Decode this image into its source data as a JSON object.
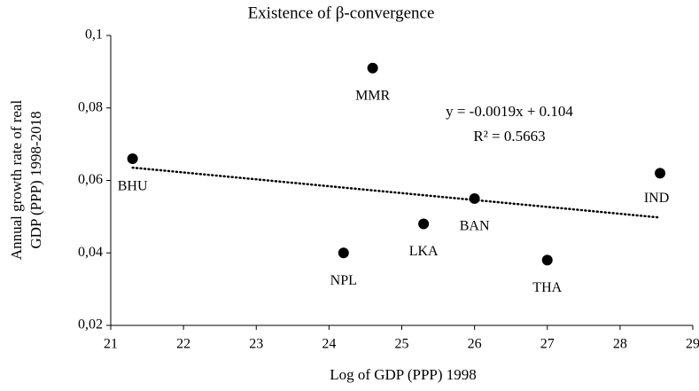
{
  "chart_data": {
    "type": "scatter",
    "title": "Existence of β-convergence",
    "xlabel": "Log of GDP (PPP) 1998",
    "ylabel": [
      "Annual growth rate of real",
      "GDP (PPP) 1998-2018"
    ],
    "labels": [
      "BHU",
      "MMR",
      "NPL",
      "LKA",
      "BAN",
      "THA",
      "IND"
    ],
    "x": [
      21.3,
      24.6,
      24.2,
      25.3,
      26.0,
      27.0,
      28.55
    ],
    "y": [
      0.066,
      0.091,
      0.04,
      0.048,
      0.055,
      0.038,
      0.062
    ],
    "color": "#000000",
    "xlim": [
      21,
      29
    ],
    "xticks": [
      21,
      22,
      23,
      24,
      25,
      26,
      27,
      28,
      29
    ],
    "ylim": [
      0.02,
      0.1
    ],
    "yticks": [
      {
        "value": 0.02,
        "label": "0,02"
      },
      {
        "value": 0.04,
        "label": "0,04"
      },
      {
        "value": 0.06,
        "label": "0,06"
      },
      {
        "value": 0.08,
        "label": "0,08"
      },
      {
        "value": 0.1,
        "label": "0,1"
      }
    ],
    "grid": false,
    "trendline": {
      "slope": -0.0019,
      "intercept": 0.104,
      "equation": "y = -0.0019x + 0.104",
      "r2": "R² = 0.5663"
    }
  }
}
